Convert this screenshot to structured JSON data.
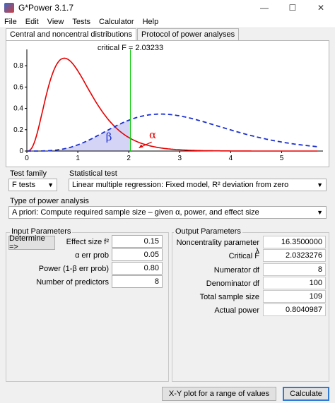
{
  "window": {
    "title": "G*Power 3.1.7",
    "min": "—",
    "max": "☐",
    "close": "✕"
  },
  "menu": [
    "File",
    "Edit",
    "View",
    "Tests",
    "Calculator",
    "Help"
  ],
  "tabs": [
    {
      "label": "Central and noncentral distributions",
      "active": true
    },
    {
      "label": "Protocol of power analyses",
      "active": false
    }
  ],
  "plot": {
    "critical_label": "critical F = 2.03233",
    "critical_f": 2.03233,
    "beta_symbol": "β",
    "alpha_symbol": "α",
    "x_ticks": [
      "0",
      "1",
      "2",
      "3",
      "4",
      "5"
    ],
    "y_ticks": [
      "0",
      "0.2",
      "0.4",
      "0.6",
      "0.8"
    ],
    "x_range": [
      0,
      5.7
    ],
    "y_range": [
      0,
      0.9
    ],
    "central_df": [
      8,
      100
    ],
    "noncentral_df": [
      8,
      100
    ],
    "noncentrality": 16.35,
    "colors": {
      "central": "#e60000",
      "noncentral": "#1a2fcf",
      "critical_line": "#00cc00",
      "beta_fill": "#c9c9f5"
    }
  },
  "test_family": {
    "label": "Test family",
    "value": "F tests"
  },
  "statistical_test": {
    "label": "Statistical test",
    "value": "Linear multiple regression: Fixed model, R² deviation from zero"
  },
  "analysis_type": {
    "label": "Type of power analysis",
    "value": "A priori: Compute required sample size – given α, power, and effect size"
  },
  "input": {
    "title": "Input Parameters",
    "determine_label": "Determine =>",
    "fields": [
      {
        "label": "Effect size f²",
        "value": "0.15"
      },
      {
        "label": "α err prob",
        "value": "0.05"
      },
      {
        "label": "Power (1-β err prob)",
        "value": "0.80"
      },
      {
        "label": "Number of predictors",
        "value": "8"
      }
    ]
  },
  "output": {
    "title": "Output Parameters",
    "fields": [
      {
        "label": "Noncentrality parameter λ",
        "value": "16.3500000"
      },
      {
        "label": "Critical F",
        "value": "2.0323276"
      },
      {
        "label": "Numerator df",
        "value": "8"
      },
      {
        "label": "Denominator df",
        "value": "100"
      },
      {
        "label": "Total sample size",
        "value": "109"
      },
      {
        "label": "Actual power",
        "value": "0.8040987"
      }
    ]
  },
  "buttons": {
    "xy_plot": "X-Y plot for a range of values",
    "calculate": "Calculate"
  }
}
